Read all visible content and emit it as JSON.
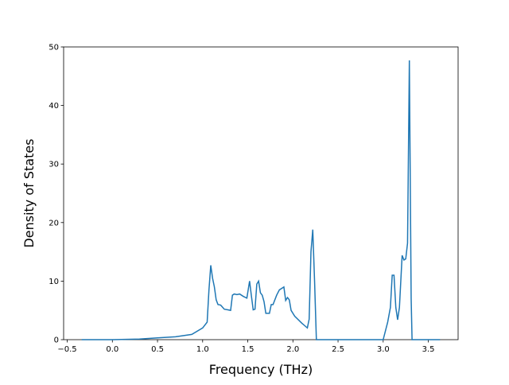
{
  "chart_data": {
    "type": "line",
    "xlabel": "Frequency (THz)",
    "ylabel": "Density of States",
    "x": [
      -0.34,
      0.0,
      0.3,
      0.5,
      0.7,
      0.88,
      1.0,
      1.05,
      1.07,
      1.09,
      1.11,
      1.13,
      1.15,
      1.17,
      1.2,
      1.24,
      1.28,
      1.31,
      1.33,
      1.35,
      1.38,
      1.41,
      1.45,
      1.49,
      1.52,
      1.54,
      1.56,
      1.58,
      1.6,
      1.62,
      1.64,
      1.66,
      1.68,
      1.7,
      1.74,
      1.76,
      1.78,
      1.82,
      1.85,
      1.9,
      1.92,
      1.94,
      1.96,
      1.98,
      2.02,
      2.1,
      2.16,
      2.18,
      2.2,
      2.22,
      2.24,
      2.26,
      2.5,
      3.0,
      3.05,
      3.08,
      3.1,
      3.12,
      3.14,
      3.16,
      3.18,
      3.21,
      3.23,
      3.25,
      3.27,
      3.29,
      3.31,
      3.32,
      3.63
    ],
    "series": [
      {
        "color": "#1f77b4",
        "values": [
          0,
          0,
          0.1,
          0.3,
          0.5,
          0.9,
          2.0,
          3.0,
          8.5,
          12.7,
          10.5,
          9.0,
          6.8,
          6.0,
          5.9,
          5.2,
          5.1,
          5.0,
          7.6,
          7.8,
          7.7,
          7.8,
          7.4,
          7.1,
          10.0,
          7.5,
          5.1,
          5.2,
          9.5,
          10.0,
          8.0,
          7.6,
          6.5,
          4.5,
          4.5,
          6.0,
          6.0,
          7.6,
          8.5,
          9.0,
          6.7,
          7.2,
          6.8,
          5.0,
          4.0,
          2.8,
          2.0,
          3.5,
          15.0,
          18.8,
          10.0,
          0,
          0,
          0,
          3.0,
          5.5,
          11.0,
          11.0,
          5.5,
          3.4,
          5.5,
          14.4,
          13.6,
          13.8,
          16.5,
          47.7,
          7.0,
          0,
          0
        ]
      }
    ],
    "xlim": [
      -0.54,
      3.83
    ],
    "ylim": [
      0,
      50
    ],
    "xticks": [
      {
        "value": -0.5,
        "label": "−0.5"
      },
      {
        "value": 0,
        "label": "0.0"
      },
      0.5,
      {
        "value": 1,
        "label": "1.0"
      },
      1.5,
      {
        "value": 2,
        "label": "2.0"
      },
      2.5,
      {
        "value": 3,
        "label": "3.0"
      },
      3.5
    ],
    "yticks": [
      0,
      10,
      20,
      30,
      40,
      50
    ]
  }
}
